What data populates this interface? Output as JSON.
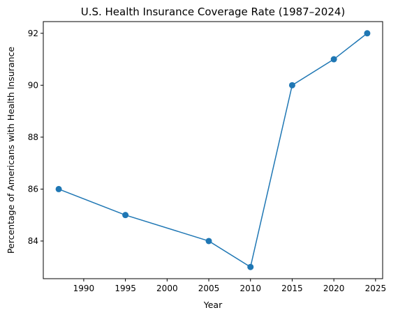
{
  "chart_data": {
    "type": "line",
    "title": "U.S. Health Insurance Coverage Rate (1987–2024)",
    "xlabel": "Year",
    "ylabel": "Percentage of Americans with Health Insurance",
    "xlim": [
      1985.15,
      2025.85
    ],
    "ylim": [
      82.55,
      92.45
    ],
    "x_ticks": [
      1990,
      1995,
      2000,
      2005,
      2010,
      2015,
      2020,
      2025
    ],
    "y_ticks": [
      84,
      86,
      88,
      90,
      92
    ],
    "grid": false,
    "series": [
      {
        "x": [
          1987,
          1995,
          2005,
          2010,
          2015,
          2020,
          2024
        ],
        "y": [
          86,
          85,
          84,
          83,
          90,
          91,
          92
        ],
        "color": "#1f77b4",
        "marker": "circle"
      }
    ]
  }
}
